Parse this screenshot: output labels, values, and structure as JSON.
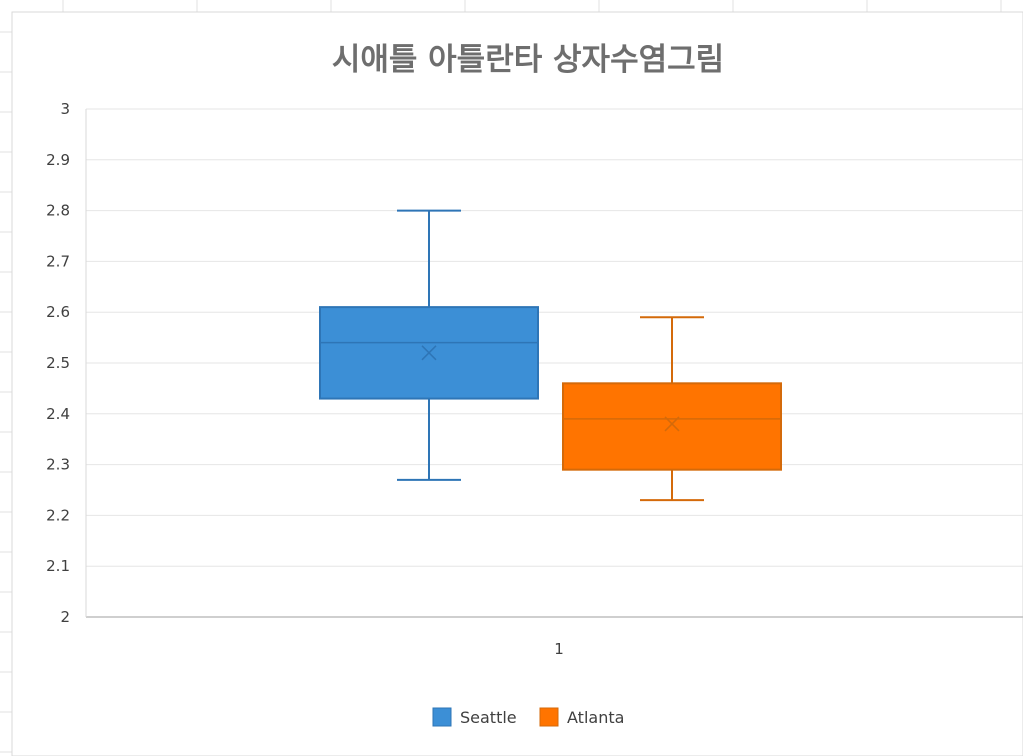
{
  "chart_data": {
    "type": "box",
    "title": "시애틀 아틀란타 상자수염그림",
    "categories": [
      "1"
    ],
    "ylim": [
      2,
      3
    ],
    "ytick_step": 0.1,
    "ytick_labels": [
      "2",
      "2.1",
      "2.2",
      "2.3",
      "2.4",
      "2.5",
      "2.6",
      "2.7",
      "2.8",
      "2.9",
      "3"
    ],
    "grid": true,
    "legend_position": "bottom",
    "series": [
      {
        "name": "Seattle",
        "color": "#3c8fd6",
        "edge_color": "#2e75b6",
        "min": 2.27,
        "q1": 2.43,
        "median": 2.54,
        "q3": 2.61,
        "max": 2.8,
        "mean": 2.52
      },
      {
        "name": "Atlanta",
        "color": "#ff7400",
        "edge_color": "#d46a0a",
        "min": 2.23,
        "q1": 2.29,
        "median": 2.39,
        "q3": 2.46,
        "max": 2.59,
        "mean": 2.38
      }
    ]
  }
}
